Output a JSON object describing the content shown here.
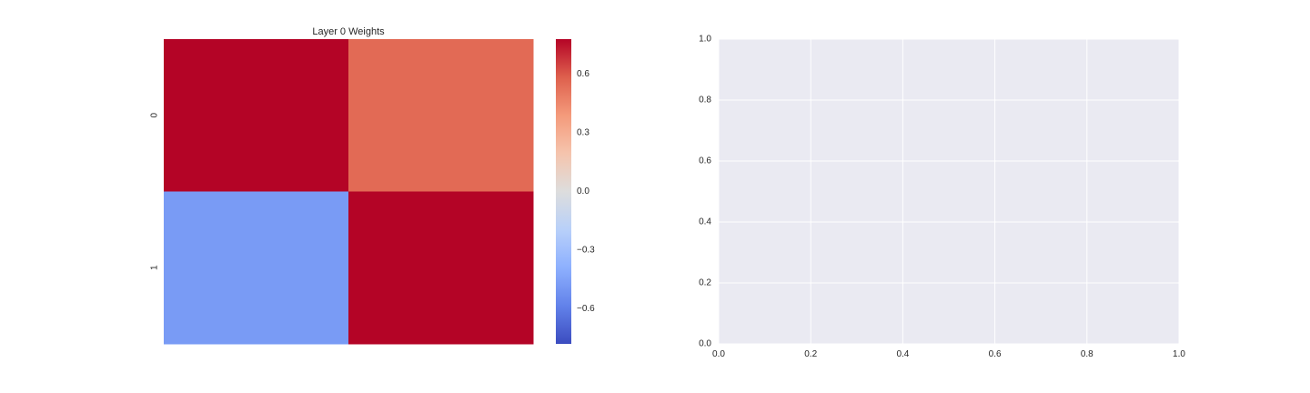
{
  "chart_data": [
    {
      "type": "heatmap",
      "title": "Layer 0 Weights",
      "rows": [
        "0",
        "1"
      ],
      "columns": [
        "",
        ""
      ],
      "values": [
        [
          0.78,
          0.55
        ],
        [
          -0.48,
          0.78
        ]
      ],
      "colormap": "coolwarm",
      "vmin": -0.78,
      "vmax": 0.78,
      "colorbar_ticks": [
        0.6,
        0.3,
        0.0,
        -0.3,
        -0.6
      ],
      "colorbar_tick_labels": [
        "0.6",
        "0.3",
        "0.0",
        "−0.3",
        "−0.6"
      ],
      "xtick_labels_visible": false
    },
    {
      "type": "line",
      "series": [],
      "xlim": [
        0,
        1
      ],
      "ylim": [
        0,
        1
      ],
      "xticks": [
        0.0,
        0.2,
        0.4,
        0.6,
        0.8,
        1.0
      ],
      "yticks": [
        0.0,
        0.2,
        0.4,
        0.6,
        0.8,
        1.0
      ],
      "xtick_labels": [
        "0.0",
        "0.2",
        "0.4",
        "0.6",
        "0.8",
        "1.0"
      ],
      "ytick_labels": [
        "0.0",
        "0.2",
        "0.4",
        "0.6",
        "0.8",
        "1.0"
      ],
      "grid": true,
      "background": "#eaeaf2",
      "grid_color": "#ffffff"
    }
  ]
}
